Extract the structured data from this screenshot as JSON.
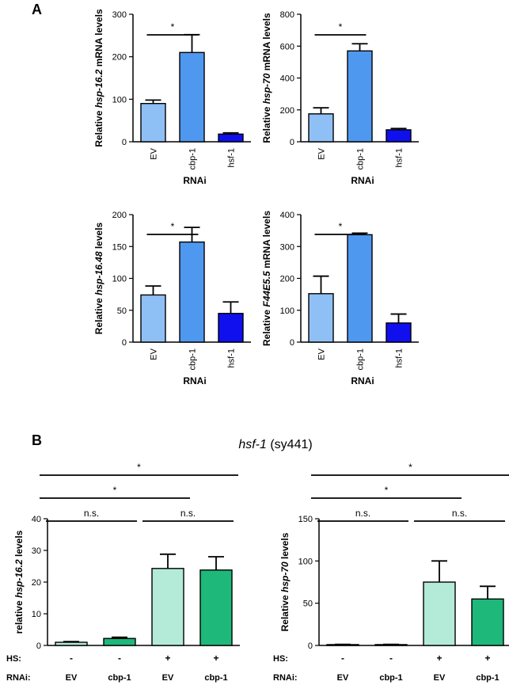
{
  "panel_labels": {
    "a": "A",
    "b": "B"
  },
  "colors": {
    "ev": "#8fc0f5",
    "cbp": "#4f98f0",
    "hsf": "#1010ee",
    "green_light": "#b4ead8",
    "green_dark": "#1db87a",
    "axis": "#000000"
  },
  "panel_b_title": {
    "gene": "hsf-1",
    "allele": " (sy441)"
  },
  "chart_data": [
    {
      "type": "bar",
      "panel": "A",
      "ylabel_pre": "Relative ",
      "ylabel_gene": "hsp-16.2",
      "ylabel_post": " mRNA levels",
      "xlabel": "RNAi",
      "categories": [
        "EV",
        "cbp-1",
        "hsf-1"
      ],
      "values": [
        90,
        210,
        18
      ],
      "errors": [
        8,
        42,
        3
      ],
      "ylim": [
        0,
        300
      ],
      "yticks": [
        0,
        100,
        200,
        300
      ],
      "ytick_labels": [
        "0",
        "100",
        "200",
        "300"
      ],
      "significance": [
        {
          "from": 0,
          "to": 1,
          "label": "*"
        }
      ]
    },
    {
      "type": "bar",
      "panel": "A",
      "ylabel_pre": "Relative ",
      "ylabel_gene": "hsp-70",
      "ylabel_post": " mRNA levels",
      "xlabel": "RNAi",
      "categories": [
        "EV",
        "cbp-1",
        "hsf-1"
      ],
      "values": [
        175,
        570,
        75
      ],
      "errors": [
        38,
        45,
        8
      ],
      "ylim": [
        0,
        800
      ],
      "yticks": [
        0,
        200,
        400,
        600,
        800
      ],
      "ytick_labels": [
        "0",
        "200",
        "400",
        "600",
        "800"
      ],
      "significance": [
        {
          "from": 0,
          "to": 1,
          "label": "*"
        }
      ]
    },
    {
      "type": "bar",
      "panel": "A",
      "ylabel_pre": "Relative ",
      "ylabel_gene": "hsp-16.48",
      "ylabel_post": " levels",
      "xlabel": "RNAi",
      "categories": [
        "EV",
        "cbp-1",
        "hsf-1"
      ],
      "values": [
        74,
        157,
        45
      ],
      "errors": [
        14,
        23,
        18
      ],
      "ylim": [
        0,
        200
      ],
      "yticks": [
        0,
        50,
        100,
        150,
        200
      ],
      "ytick_labels": [
        "0",
        "50",
        "100",
        "150",
        "200"
      ],
      "significance": [
        {
          "from": 0,
          "to": 1,
          "label": "*"
        }
      ]
    },
    {
      "type": "bar",
      "panel": "A",
      "ylabel_pre": "Relative ",
      "ylabel_gene": "F44E5.5",
      "ylabel_post": " mRNA levels",
      "xlabel": "RNAi",
      "categories": [
        "EV",
        "cbp-1",
        "hsf-1"
      ],
      "values": [
        152,
        337,
        60
      ],
      "errors": [
        55,
        5,
        28
      ],
      "ylim": [
        0,
        400
      ],
      "yticks": [
        0,
        100,
        200,
        300,
        400
      ],
      "ytick_labels": [
        "0",
        "100",
        "200",
        "300",
        "400"
      ],
      "significance": [
        {
          "from": 0,
          "to": 1,
          "label": "*"
        }
      ]
    },
    {
      "type": "bar",
      "panel": "B",
      "ylabel_pre": "relative ",
      "ylabel_gene": "hsp-16.2",
      "ylabel_post": " levels",
      "categories": [
        "EV",
        "cbp-1",
        "EV",
        "cbp-1"
      ],
      "hs": [
        "-",
        "-",
        "+",
        "+"
      ],
      "row_labels": {
        "hs": "HS:",
        "rnai": "RNAi:"
      },
      "values": [
        1.0,
        2.2,
        24.3,
        23.8
      ],
      "errors": [
        0.2,
        0.4,
        4.5,
        4.2
      ],
      "ylim": [
        0,
        40
      ],
      "yticks": [
        0,
        10,
        20,
        30,
        40
      ],
      "ytick_labels": [
        "0",
        "10",
        "20",
        "30",
        "40"
      ],
      "significance": [
        {
          "from": 0,
          "to": 1,
          "label": "n.s."
        },
        {
          "from": 2,
          "to": 3,
          "label": "n.s."
        },
        {
          "from": 0,
          "to": 2,
          "label": "*"
        },
        {
          "from": 0,
          "to": 3,
          "label": "*"
        }
      ]
    },
    {
      "type": "bar",
      "panel": "B",
      "ylabel_pre": "Relative ",
      "ylabel_gene": "hsp-70",
      "ylabel_post": " levels",
      "categories": [
        "EV",
        "cbp-1",
        "EV",
        "cbp-1"
      ],
      "hs": [
        "-",
        "-",
        "+",
        "+"
      ],
      "row_labels": {
        "hs": "HS:",
        "rnai": "RNAi:"
      },
      "values": [
        1.0,
        1.0,
        75,
        55
      ],
      "errors": [
        0.3,
        0.3,
        25,
        15
      ],
      "ylim": [
        0,
        150
      ],
      "yticks": [
        0,
        50,
        100,
        150
      ],
      "ytick_labels": [
        "0",
        "50",
        "100",
        "150"
      ],
      "significance": [
        {
          "from": 0,
          "to": 1,
          "label": "n.s."
        },
        {
          "from": 2,
          "to": 3,
          "label": "n.s."
        },
        {
          "from": 0,
          "to": 2,
          "label": "*"
        },
        {
          "from": 0,
          "to": 3,
          "label": "*"
        }
      ]
    }
  ]
}
